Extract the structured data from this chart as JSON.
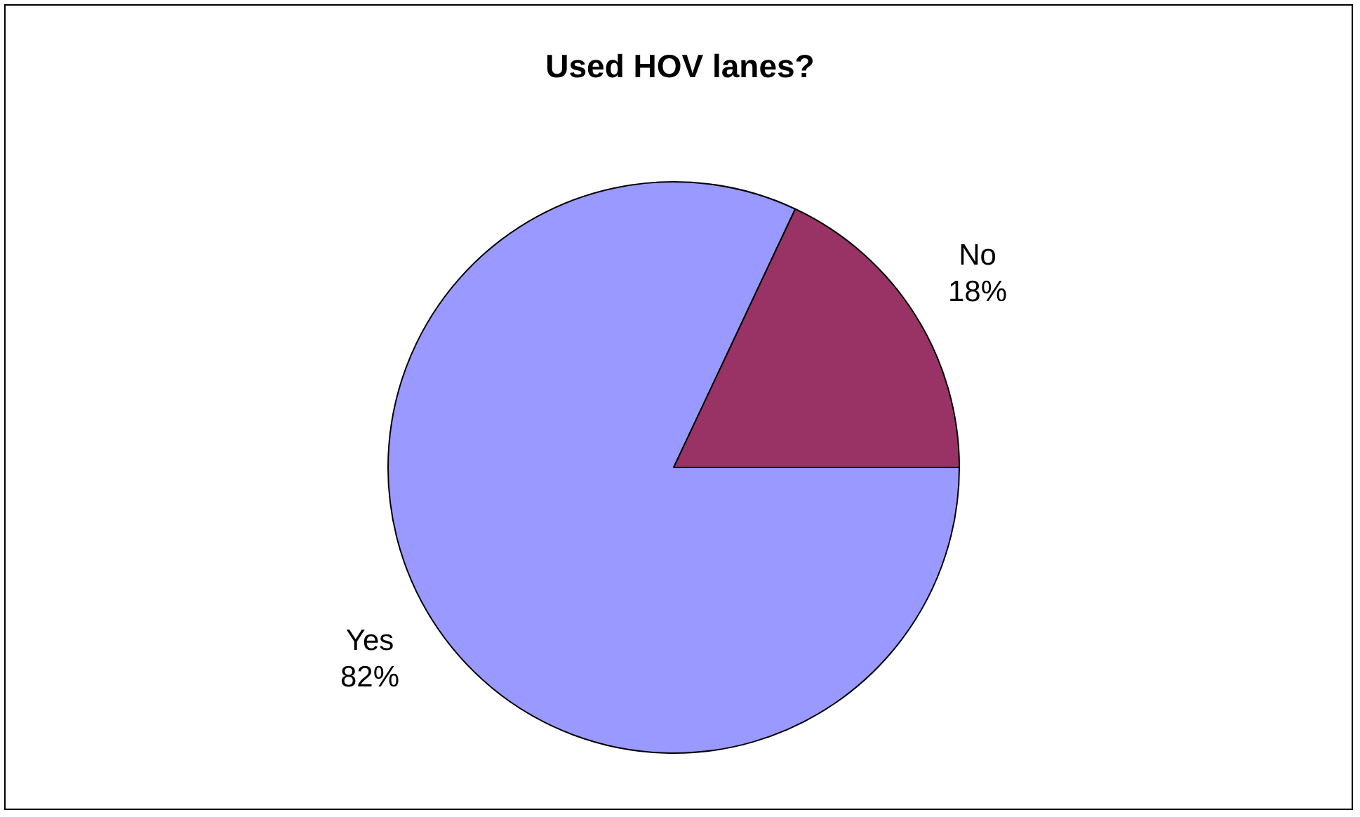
{
  "chart_data": {
    "type": "pie",
    "title": "Used HOV lanes?",
    "categories": [
      "Yes",
      "No"
    ],
    "values": [
      82,
      18
    ],
    "colors": [
      "#9999ff",
      "#993366"
    ],
    "value_labels": [
      "82%",
      "18%"
    ],
    "legend": false
  }
}
